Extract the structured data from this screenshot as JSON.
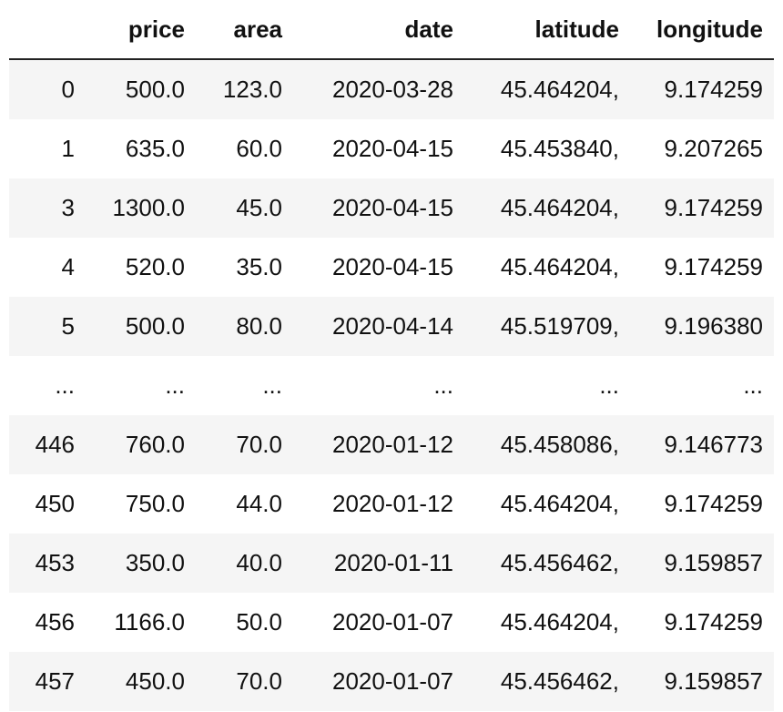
{
  "table": {
    "columns": [
      "",
      "price",
      "area",
      "date",
      "latitude",
      "longitude"
    ],
    "rows": [
      [
        "0",
        "500.0",
        "123.0",
        "2020-03-28",
        "45.464204,",
        "9.174259"
      ],
      [
        "1",
        "635.0",
        "60.0",
        "2020-04-15",
        "45.453840,",
        "9.207265"
      ],
      [
        "3",
        "1300.0",
        "45.0",
        "2020-04-15",
        "45.464204,",
        "9.174259"
      ],
      [
        "4",
        "520.0",
        "35.0",
        "2020-04-15",
        "45.464204,",
        "9.174259"
      ],
      [
        "5",
        "500.0",
        "80.0",
        "2020-04-14",
        "45.519709,",
        "9.196380"
      ],
      [
        "...",
        "...",
        "...",
        "...",
        "...",
        "..."
      ],
      [
        "446",
        "760.0",
        "70.0",
        "2020-01-12",
        "45.458086,",
        "9.146773"
      ],
      [
        "450",
        "750.0",
        "44.0",
        "2020-01-12",
        "45.464204,",
        "9.174259"
      ],
      [
        "453",
        "350.0",
        "40.0",
        "2020-01-11",
        "45.456462,",
        "9.159857"
      ],
      [
        "456",
        "1166.0",
        "50.0",
        "2020-01-07",
        "45.464204,",
        "9.174259"
      ],
      [
        "457",
        "450.0",
        "70.0",
        "2020-01-07",
        "45.456462,",
        "9.159857"
      ]
    ]
  }
}
